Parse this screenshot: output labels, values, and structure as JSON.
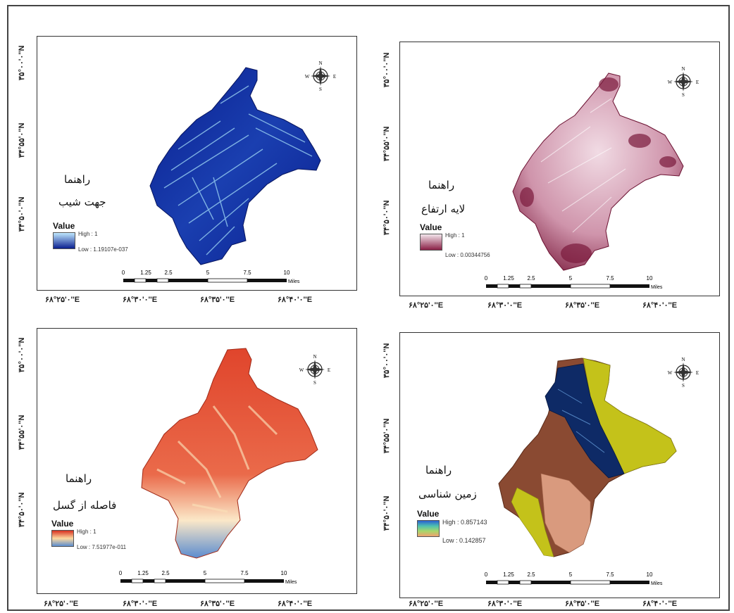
{
  "panels": [
    {
      "id": "aspect",
      "legend_heading": "راهنما",
      "layer_name": "جهت شیب",
      "value_label": "Value",
      "high_label": "High : 1",
      "low_label": "Low : 1.19107e-037",
      "ramp_colors": [
        "#bfe8ff",
        "#0a1f8f"
      ],
      "fill_colors": [
        "#0a1f8f",
        "#1a3fb0",
        "#7fc7f0"
      ],
      "lat_labels": [
        "۳۵°۰۰'۰''N",
        "۳۴°۵۵'۰''N",
        "۳۴°۵۰'۰''N"
      ],
      "lon_labels": [
        "۶۸°۲۵'۰''E",
        "۶۸°۳۰'۰''E",
        "۶۸°۳۵'۰''E",
        "۶۸°۴۰'۰''E"
      ]
    },
    {
      "id": "elevation",
      "legend_heading": "راهنما",
      "layer_name": "لایه ارتفاع",
      "value_label": "Value",
      "high_label": "High : 1",
      "low_label": "Low : 0.00344756",
      "ramp_colors": [
        "#f3e6ec",
        "#8a1f45"
      ],
      "fill_colors": [
        "#e6c7d3",
        "#b9738f",
        "#7a1a3c"
      ],
      "lat_labels": [
        "۳۵°۰۰'۰''N",
        "۳۴°۵۵'۰''N",
        "۳۴°۵۰'۰''N"
      ],
      "lon_labels": [
        "۶۸°۲۵'۰''E",
        "۶۸°۳۰'۰''E",
        "۶۸°۳۵'۰''E",
        "۶۸°۴۰'۰''E"
      ]
    },
    {
      "id": "fault-distance",
      "legend_heading": "راهنما",
      "layer_name": "فاصله از گسل",
      "value_label": "Value",
      "high_label": "High : 1",
      "low_label": "Low : 7.51977e-011",
      "ramp_colors": [
        "#d7301f",
        "#fdd9a0",
        "#5b8ccf"
      ],
      "fill_colors": [
        "#e0452c",
        "#f4a882",
        "#fbe8c8",
        "#5b8ccf"
      ],
      "lat_labels": [
        "۳۵°۰۰'۰''N",
        "۳۴°۵۵'۰''N",
        "۳۴°۵۰'۰''N"
      ],
      "lon_labels": [
        "۶۸°۲۵'۰''E",
        "۶۸°۳۰'۰''E",
        "۶۸°۳۵'۰''E",
        "۶۸°۴۰'۰''E"
      ]
    },
    {
      "id": "geology",
      "legend_heading": "راهنما",
      "layer_name": "زمین شناسی",
      "value_label": "Value",
      "high_label": "High : 0.857143",
      "low_label": "Low : 0.142857",
      "ramp_colors": [
        "#2b5fd0",
        "#4dc0b0",
        "#a7d86a",
        "#f0a070"
      ],
      "fill_colors": [
        "#8a4a32",
        "#d99a7e",
        "#c4c21a",
        "#0e2a66"
      ],
      "lat_labels": [
        "۳۵°۰۰'۰''N",
        "۳۴°۵۵'۰''N",
        "۳۴°۵۰'۰''N"
      ],
      "lon_labels": [
        "۶۸°۲۵'۰''E",
        "۶۸°۳۰'۰''E",
        "۶۸°۳۵'۰''E",
        "۶۸°۴۰'۰''E"
      ]
    }
  ],
  "scalebar": {
    "ticks": [
      "0",
      "1.25",
      "2.5",
      "5",
      "7.5",
      "10"
    ],
    "unit": "Miles"
  },
  "compass": {
    "n": "N",
    "s": "S",
    "e": "E",
    "w": "W"
  }
}
